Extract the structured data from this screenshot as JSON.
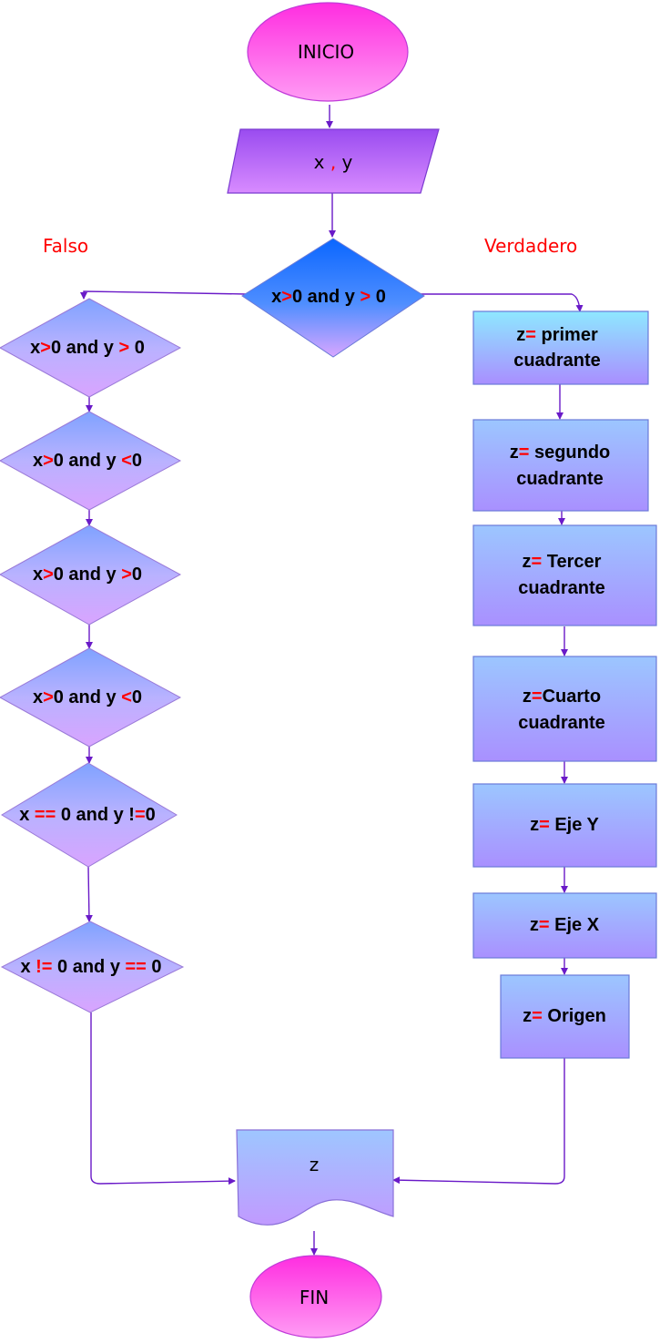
{
  "start": "INICIO",
  "input": [
    "x ",
    ",",
    " y"
  ],
  "label_false": "Falso",
  "label_true": "Verdadero",
  "decision_main": [
    "x",
    ">",
    "0 and y ",
    ">",
    " 0"
  ],
  "left_decisions": [
    [
      "x",
      ">",
      "0 and y ",
      ">",
      " 0"
    ],
    [
      "x",
      ">",
      "0 and y ",
      "<",
      "0"
    ],
    [
      "x",
      ">",
      "0 and y ",
      ">",
      "0"
    ],
    [
      "x",
      ">",
      "0 and y ",
      "<",
      "0"
    ],
    [
      "x ",
      "==",
      " 0 and y !",
      "=",
      "0"
    ],
    [
      "x ",
      "!=",
      " 0 and y ",
      "==",
      " 0"
    ]
  ],
  "right_processes": [
    {
      "line1": [
        "z",
        "=",
        " primer"
      ],
      "line2": "cuadrante"
    },
    {
      "line1": [
        "z",
        "=",
        " segundo"
      ],
      "line2": "cuadrante"
    },
    {
      "line1": [
        "z",
        "=",
        " Tercer"
      ],
      "line2": "cuadrante"
    },
    {
      "line1": [
        "z",
        "=",
        "Cuarto"
      ],
      "line2": "cuadrante"
    },
    {
      "line1": [
        "z",
        "=",
        " Eje Y"
      ],
      "line2": ""
    },
    {
      "line1": [
        "z",
        "=",
        " Eje X"
      ],
      "line2": ""
    },
    {
      "line1": [
        "z",
        "=",
        " Origen"
      ],
      "line2": ""
    }
  ],
  "output": "z",
  "end": "FIN",
  "colors": {
    "terminal": "#ff44e6",
    "box_top": "#86e9ff",
    "box_bottom": "#a88cff",
    "blue_decision": "#1a6cff",
    "text_red": "#ff0000",
    "edge": "#6a1ac8"
  }
}
